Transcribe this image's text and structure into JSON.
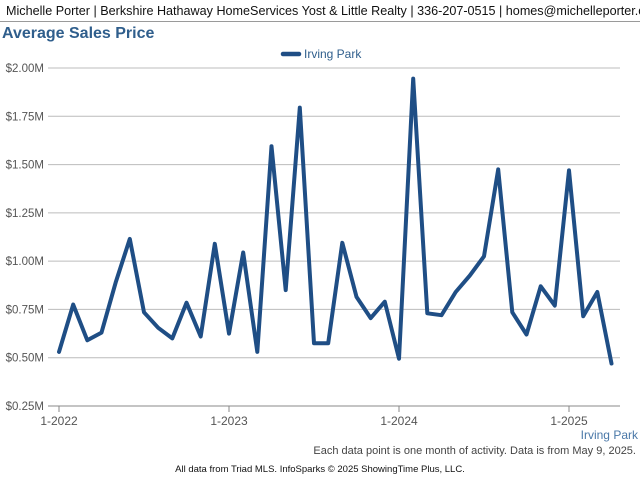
{
  "header": {
    "text": "Michelle Porter | Berkshire Hathaway HomeServices Yost & Little Realty | 336-207-0515 | homes@michelleporter.com"
  },
  "chart_data": {
    "type": "line",
    "title": "Average Sales Price",
    "legend_position": "top-center",
    "grid": true,
    "ylim": [
      250000,
      2000000
    ],
    "yticks": [
      250000,
      500000,
      750000,
      1000000,
      1250000,
      1500000,
      1750000,
      2000000
    ],
    "ytick_labels": [
      "$0.25M",
      "$0.50M",
      "$0.75M",
      "$1.00M",
      "$1.25M",
      "$1.50M",
      "$1.75M",
      "$2.00M"
    ],
    "x_start": "2022-01",
    "x_end": "2025-04",
    "xticks": [
      "1-2022",
      "1-2023",
      "1-2024",
      "1-2025"
    ],
    "x_corner_label": "Irving Park",
    "series": [
      {
        "name": "Irving Park",
        "color": "#1f4e85",
        "x": [
          "2022-01",
          "2022-02",
          "2022-03",
          "2022-04",
          "2022-05",
          "2022-06",
          "2022-07",
          "2022-08",
          "2022-09",
          "2022-10",
          "2022-11",
          "2022-12",
          "2023-01",
          "2023-02",
          "2023-03",
          "2023-04",
          "2023-05",
          "2023-06",
          "2023-07",
          "2023-08",
          "2023-09",
          "2023-10",
          "2023-11",
          "2023-12",
          "2024-01",
          "2024-02",
          "2024-03",
          "2024-04",
          "2024-05",
          "2024-06",
          "2024-07",
          "2024-08",
          "2024-09",
          "2024-10",
          "2024-11",
          "2024-12",
          "2025-01",
          "2025-02",
          "2025-03",
          "2025-04"
        ],
        "values": [
          530000,
          775000,
          590000,
          630000,
          890000,
          1115000,
          735000,
          655000,
          600000,
          785000,
          610000,
          1090000,
          625000,
          1045000,
          530000,
          1595000,
          850000,
          1795000,
          575000,
          575000,
          1095000,
          815000,
          705000,
          790000,
          495000,
          1945000,
          730000,
          720000,
          840000,
          925000,
          1025000,
          1475000,
          735000,
          620000,
          870000,
          770000,
          1470000,
          715000,
          840000,
          470000
        ]
      }
    ]
  },
  "footer": {
    "note": "Each data point is one month of activity. Data is from May 9, 2025.",
    "credit": "All data from Triad MLS. InfoSparks © 2025 ShowingTime Plus, LLC."
  }
}
